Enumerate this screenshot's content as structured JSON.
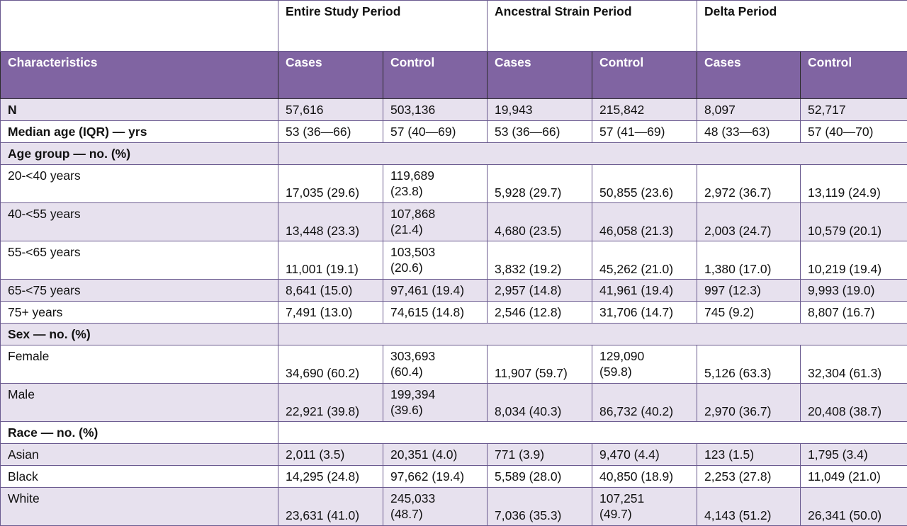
{
  "periods": {
    "entire": "Entire Study Period",
    "ancestral": "Ancestral Strain Period",
    "delta": "Delta Period"
  },
  "col_headers": {
    "characteristics": "Characteristics",
    "cases": "Cases",
    "control": "Control"
  },
  "rows": {
    "n": {
      "label": "N",
      "values": [
        "57,616",
        "503,136",
        "19,943",
        "215,842",
        "8,097",
        "52,717"
      ]
    },
    "median_age": {
      "label": "Median age (IQR) — yrs",
      "values": [
        "53 (36—66)",
        "57 (40—69)",
        "53 (36—66)",
        "57 (41—69)",
        "48 (33—63)",
        "57 (40—70)"
      ]
    },
    "age_group": {
      "label": "Age group — no. (%)"
    },
    "age_20_40": {
      "label": "20-<40 years",
      "values": [
        "17,035 (29.6)",
        "119,689 (23.8)",
        "5,928 (29.7)",
        "50,855 (23.6)",
        "2,972 (36.7)",
        "13,119 (24.9)"
      ]
    },
    "age_40_55": {
      "label": "40-<55 years",
      "values": [
        "13,448 (23.3)",
        "107,868 (21.4)",
        "4,680 (23.5)",
        "46,058 (21.3)",
        "2,003 (24.7)",
        "10,579 (20.1)"
      ]
    },
    "age_55_65": {
      "label": "55-<65 years",
      "values": [
        "11,001 (19.1)",
        "103,503 (20.6)",
        "3,832 (19.2)",
        "45,262 (21.0)",
        "1,380 (17.0)",
        "10,219 (19.4)"
      ]
    },
    "age_65_75": {
      "label": "65-<75 years",
      "values": [
        "8,641 (15.0)",
        "97,461 (19.4)",
        "2,957 (14.8)",
        "41,961 (19.4)",
        "997 (12.3)",
        "9,993 (19.0)"
      ]
    },
    "age_75": {
      "label": "75+ years",
      "values": [
        "7,491 (13.0)",
        "74,615 (14.8)",
        "2,546 (12.8)",
        "31,706 (14.7)",
        "745 (9.2)",
        "8,807 (16.7)"
      ]
    },
    "sex": {
      "label": "Sex — no. (%)"
    },
    "female": {
      "label": "Female",
      "values": [
        "34,690 (60.2)",
        "303,693 (60.4)",
        "11,907 (59.7)",
        "129,090 (59.8)",
        "5,126 (63.3)",
        "32,304 (61.3)"
      ]
    },
    "male": {
      "label": "Male",
      "values": [
        "22,921 (39.8)",
        "199,394 (39.6)",
        "8,034 (40.3)",
        "86,732 (40.2)",
        "2,970 (36.7)",
        "20,408 (38.7)"
      ]
    },
    "race": {
      "label": "Race — no. (%)"
    },
    "asian": {
      "label": "Asian",
      "values": [
        "2,011 (3.5)",
        "20,351 (4.0)",
        "771 (3.9)",
        "9,470 (4.4)",
        "123 (1.5)",
        "1,795 (3.4)"
      ]
    },
    "black": {
      "label": "Black",
      "values": [
        "14,295 (24.8)",
        "97,662 (19.4)",
        "5,589 (28.0)",
        "40,850 (18.9)",
        "2,253 (27.8)",
        "11,049 (21.0)"
      ]
    },
    "white": {
      "label": "White",
      "values": [
        "23,631 (41.0)",
        "245,033 (48.7)",
        "7,036 (35.3)",
        "107,251 (49.7)",
        "4,143 (51.2)",
        "26,341 (50.0)"
      ]
    }
  }
}
